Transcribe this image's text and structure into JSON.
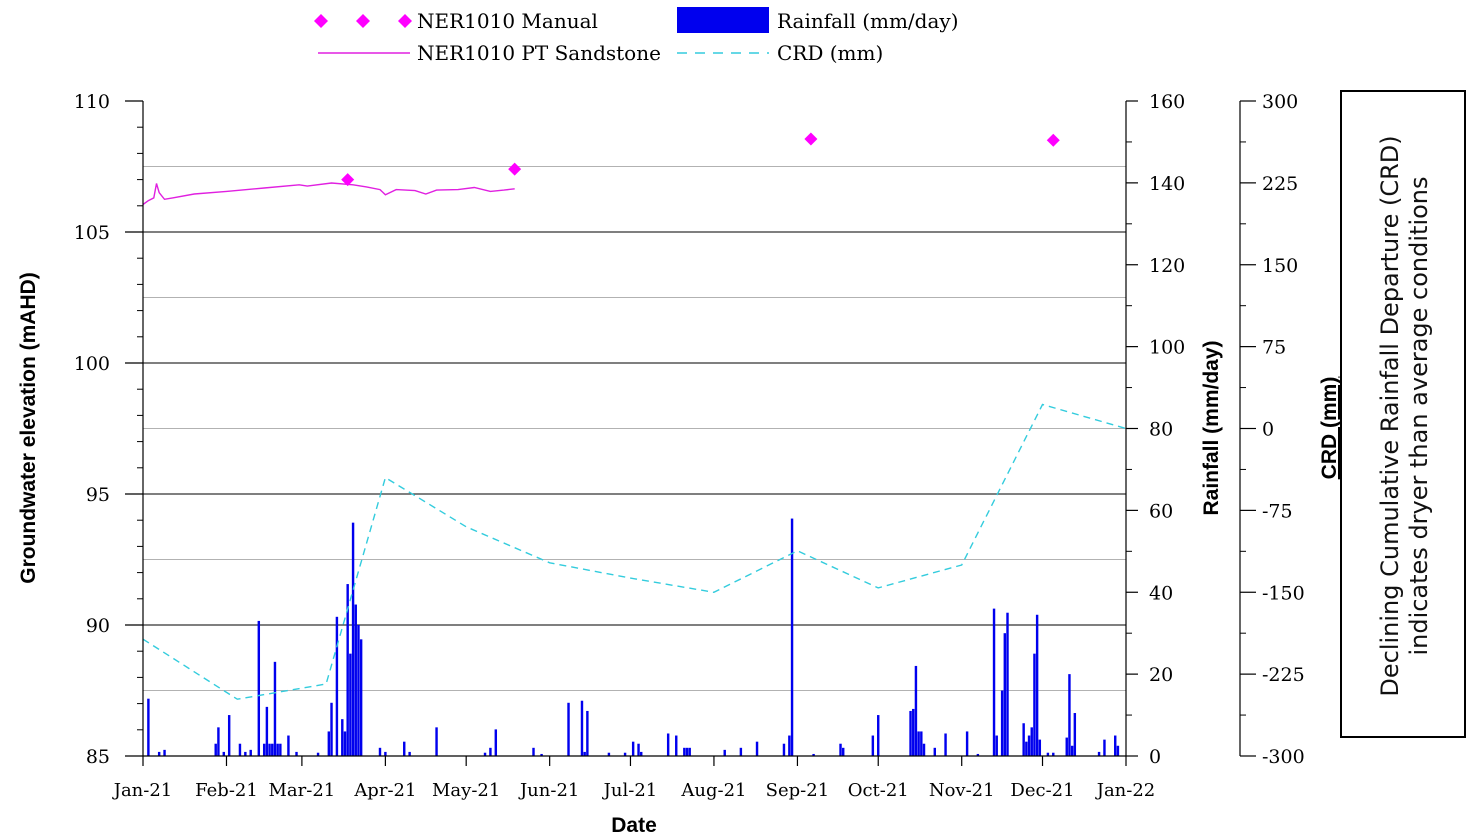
{
  "chart_data": {
    "type": "bar+line",
    "xlabel": "Date",
    "x_ticks": [
      "Jan-21",
      "Feb-21",
      "Mar-21",
      "Apr-21",
      "May-21",
      "Jun-21",
      "Jul-21",
      "Aug-21",
      "Sep-21",
      "Oct-21",
      "Nov-21",
      "Dec-21",
      "Jan-22"
    ],
    "x_range": [
      "2021-01-01",
      "2022-01-01"
    ],
    "y_left": {
      "label": "Groundwater elevation (mAHD)",
      "range": [
        85,
        110
      ],
      "ticks": [
        "85",
        "90",
        "95",
        "100",
        "105",
        "110"
      ]
    },
    "y_rain": {
      "label": "Rainfall (mm/day)",
      "range": [
        0,
        160
      ],
      "ticks": [
        "0",
        "20",
        "40",
        "60",
        "80",
        "100",
        "120",
        "140",
        "160"
      ]
    },
    "y_crd": {
      "label": "CRD (mm)",
      "range": [
        -300,
        300
      ],
      "ticks": [
        "-300",
        "-225",
        "-150",
        "-75",
        "0",
        "75",
        "150",
        "225",
        "300"
      ]
    },
    "grid": "horizontal",
    "legend_position": "top",
    "legend": {
      "manual": "NER1010 Manual",
      "pt": "NER1010 PT Sandstone",
      "rain": "Rainfall (mm/day)",
      "crd": "CRD (mm)"
    },
    "colors": {
      "manual": "#ff00ff",
      "pt": "#e020e0",
      "rain": "#0000ee",
      "crd": "#33ccdd"
    },
    "series": [
      {
        "name": "NER1010 Manual",
        "kind": "scatter",
        "points": [
          {
            "date": "2021-03-18",
            "value": 107.0
          },
          {
            "date": "2021-05-19",
            "value": 107.4
          },
          {
            "date": "2021-09-06",
            "value": 108.55
          },
          {
            "date": "2021-12-05",
            "value": 108.5
          }
        ]
      },
      {
        "name": "NER1010 PT Sandstone",
        "kind": "line",
        "points": [
          {
            "date": "2021-01-01",
            "value": 106.05
          },
          {
            "date": "2021-01-03",
            "value": 106.2
          },
          {
            "date": "2021-01-05",
            "value": 106.3
          },
          {
            "date": "2021-01-06",
            "value": 106.85
          },
          {
            "date": "2021-01-07",
            "value": 106.5
          },
          {
            "date": "2021-01-09",
            "value": 106.25
          },
          {
            "date": "2021-01-12",
            "value": 106.3
          },
          {
            "date": "2021-01-20",
            "value": 106.45
          },
          {
            "date": "2021-02-01",
            "value": 106.55
          },
          {
            "date": "2021-02-15",
            "value": 106.68
          },
          {
            "date": "2021-02-28",
            "value": 106.8
          },
          {
            "date": "2021-03-03",
            "value": 106.75
          },
          {
            "date": "2021-03-12",
            "value": 106.87
          },
          {
            "date": "2021-03-20",
            "value": 106.8
          },
          {
            "date": "2021-03-25",
            "value": 106.72
          },
          {
            "date": "2021-03-30",
            "value": 106.62
          },
          {
            "date": "2021-04-01",
            "value": 106.42
          },
          {
            "date": "2021-04-05",
            "value": 106.62
          },
          {
            "date": "2021-04-12",
            "value": 106.58
          },
          {
            "date": "2021-04-16",
            "value": 106.45
          },
          {
            "date": "2021-04-20",
            "value": 106.6
          },
          {
            "date": "2021-04-28",
            "value": 106.62
          },
          {
            "date": "2021-05-04",
            "value": 106.7
          },
          {
            "date": "2021-05-10",
            "value": 106.55
          },
          {
            "date": "2021-05-15",
            "value": 106.6
          },
          {
            "date": "2021-05-19",
            "value": 106.65
          }
        ]
      },
      {
        "name": "CRD (mm)",
        "kind": "dashed-line",
        "points": [
          {
            "date": "2021-01-01",
            "value": -193
          },
          {
            "date": "2021-02-05",
            "value": -248
          },
          {
            "date": "2021-03-10",
            "value": -234
          },
          {
            "date": "2021-04-01",
            "value": -45
          },
          {
            "date": "2021-05-01",
            "value": -90
          },
          {
            "date": "2021-06-01",
            "value": -123
          },
          {
            "date": "2021-07-01",
            "value": -137
          },
          {
            "date": "2021-08-01",
            "value": -150
          },
          {
            "date": "2021-09-01",
            "value": -112
          },
          {
            "date": "2021-10-01",
            "value": -146
          },
          {
            "date": "2021-11-01",
            "value": -125
          },
          {
            "date": "2021-12-01",
            "value": 22
          },
          {
            "date": "2022-01-01",
            "value": 0
          }
        ]
      },
      {
        "name": "Rainfall (mm/day)",
        "kind": "bar",
        "points": [
          {
            "date": "2021-01-03",
            "value": 14
          },
          {
            "date": "2021-01-07",
            "value": 1
          },
          {
            "date": "2021-01-09",
            "value": 1.5
          },
          {
            "date": "2021-01-28",
            "value": 3
          },
          {
            "date": "2021-01-29",
            "value": 7
          },
          {
            "date": "2021-01-31",
            "value": 1
          },
          {
            "date": "2021-02-02",
            "value": 10
          },
          {
            "date": "2021-02-06",
            "value": 3
          },
          {
            "date": "2021-02-08",
            "value": 1
          },
          {
            "date": "2021-02-10",
            "value": 1.5
          },
          {
            "date": "2021-02-13",
            "value": 33
          },
          {
            "date": "2021-02-15",
            "value": 3
          },
          {
            "date": "2021-02-16",
            "value": 12
          },
          {
            "date": "2021-02-17",
            "value": 3
          },
          {
            "date": "2021-02-18",
            "value": 3
          },
          {
            "date": "2021-02-19",
            "value": 23
          },
          {
            "date": "2021-02-20",
            "value": 3
          },
          {
            "date": "2021-02-21",
            "value": 3
          },
          {
            "date": "2021-02-24",
            "value": 5
          },
          {
            "date": "2021-02-27",
            "value": 1
          },
          {
            "date": "2021-03-07",
            "value": 0.8
          },
          {
            "date": "2021-03-11",
            "value": 6
          },
          {
            "date": "2021-03-12",
            "value": 13
          },
          {
            "date": "2021-03-14",
            "value": 34
          },
          {
            "date": "2021-03-16",
            "value": 9
          },
          {
            "date": "2021-03-17",
            "value": 6
          },
          {
            "date": "2021-03-18",
            "value": 42
          },
          {
            "date": "2021-03-19",
            "value": 25
          },
          {
            "date": "2021-03-20",
            "value": 57
          },
          {
            "date": "2021-03-21",
            "value": 37
          },
          {
            "date": "2021-03-22",
            "value": 32
          },
          {
            "date": "2021-03-23",
            "value": 28.5
          },
          {
            "date": "2021-03-30",
            "value": 2
          },
          {
            "date": "2021-04-01",
            "value": 1
          },
          {
            "date": "2021-04-08",
            "value": 3.5
          },
          {
            "date": "2021-04-10",
            "value": 1
          },
          {
            "date": "2021-04-20",
            "value": 7
          },
          {
            "date": "2021-05-08",
            "value": 0.8
          },
          {
            "date": "2021-05-10",
            "value": 2
          },
          {
            "date": "2021-05-12",
            "value": 6.5
          },
          {
            "date": "2021-05-26",
            "value": 2
          },
          {
            "date": "2021-05-29",
            "value": 0.5
          },
          {
            "date": "2021-06-08",
            "value": 13
          },
          {
            "date": "2021-06-13",
            "value": 13.5
          },
          {
            "date": "2021-06-14",
            "value": 1
          },
          {
            "date": "2021-06-15",
            "value": 11
          },
          {
            "date": "2021-06-23",
            "value": 0.8
          },
          {
            "date": "2021-06-29",
            "value": 0.8
          },
          {
            "date": "2021-07-02",
            "value": 3.5
          },
          {
            "date": "2021-07-04",
            "value": 3
          },
          {
            "date": "2021-07-05",
            "value": 1
          },
          {
            "date": "2021-07-15",
            "value": 5.5
          },
          {
            "date": "2021-07-18",
            "value": 5
          },
          {
            "date": "2021-07-21",
            "value": 2
          },
          {
            "date": "2021-07-22",
            "value": 2
          },
          {
            "date": "2021-07-23",
            "value": 2
          },
          {
            "date": "2021-08-05",
            "value": 1.5
          },
          {
            "date": "2021-08-11",
            "value": 2
          },
          {
            "date": "2021-08-17",
            "value": 3.5
          },
          {
            "date": "2021-08-27",
            "value": 3
          },
          {
            "date": "2021-08-29",
            "value": 5
          },
          {
            "date": "2021-08-30",
            "value": 58
          },
          {
            "date": "2021-09-07",
            "value": 0.5
          },
          {
            "date": "2021-09-17",
            "value": 3
          },
          {
            "date": "2021-09-18",
            "value": 2
          },
          {
            "date": "2021-09-29",
            "value": 5
          },
          {
            "date": "2021-10-01",
            "value": 10
          },
          {
            "date": "2021-10-13",
            "value": 11
          },
          {
            "date": "2021-10-14",
            "value": 11.5
          },
          {
            "date": "2021-10-15",
            "value": 22
          },
          {
            "date": "2021-10-16",
            "value": 6
          },
          {
            "date": "2021-10-17",
            "value": 6
          },
          {
            "date": "2021-10-18",
            "value": 3
          },
          {
            "date": "2021-10-22",
            "value": 2
          },
          {
            "date": "2021-10-26",
            "value": 5.5
          },
          {
            "date": "2021-11-03",
            "value": 6
          },
          {
            "date": "2021-11-07",
            "value": 0.5
          },
          {
            "date": "2021-11-13",
            "value": 36
          },
          {
            "date": "2021-11-14",
            "value": 5
          },
          {
            "date": "2021-11-16",
            "value": 16
          },
          {
            "date": "2021-11-17",
            "value": 30
          },
          {
            "date": "2021-11-18",
            "value": 35
          },
          {
            "date": "2021-11-24",
            "value": 8
          },
          {
            "date": "2021-11-25",
            "value": 3.5
          },
          {
            "date": "2021-11-26",
            "value": 5
          },
          {
            "date": "2021-11-27",
            "value": 7
          },
          {
            "date": "2021-11-28",
            "value": 25
          },
          {
            "date": "2021-11-29",
            "value": 34.5
          },
          {
            "date": "2021-11-30",
            "value": 4
          },
          {
            "date": "2021-12-03",
            "value": 0.8
          },
          {
            "date": "2021-12-05",
            "value": 0.8
          },
          {
            "date": "2021-12-10",
            "value": 4.5
          },
          {
            "date": "2021-12-11",
            "value": 20
          },
          {
            "date": "2021-12-12",
            "value": 2.5
          },
          {
            "date": "2021-12-13",
            "value": 10.5
          },
          {
            "date": "2021-12-22",
            "value": 1
          },
          {
            "date": "2021-12-24",
            "value": 4
          },
          {
            "date": "2021-12-28",
            "value": 5
          },
          {
            "date": "2021-12-29",
            "value": 2.5
          }
        ]
      }
    ],
    "annotation": "Declining Cumulative Rainfall Departure (CRD) indicates dryer than average conditions"
  }
}
